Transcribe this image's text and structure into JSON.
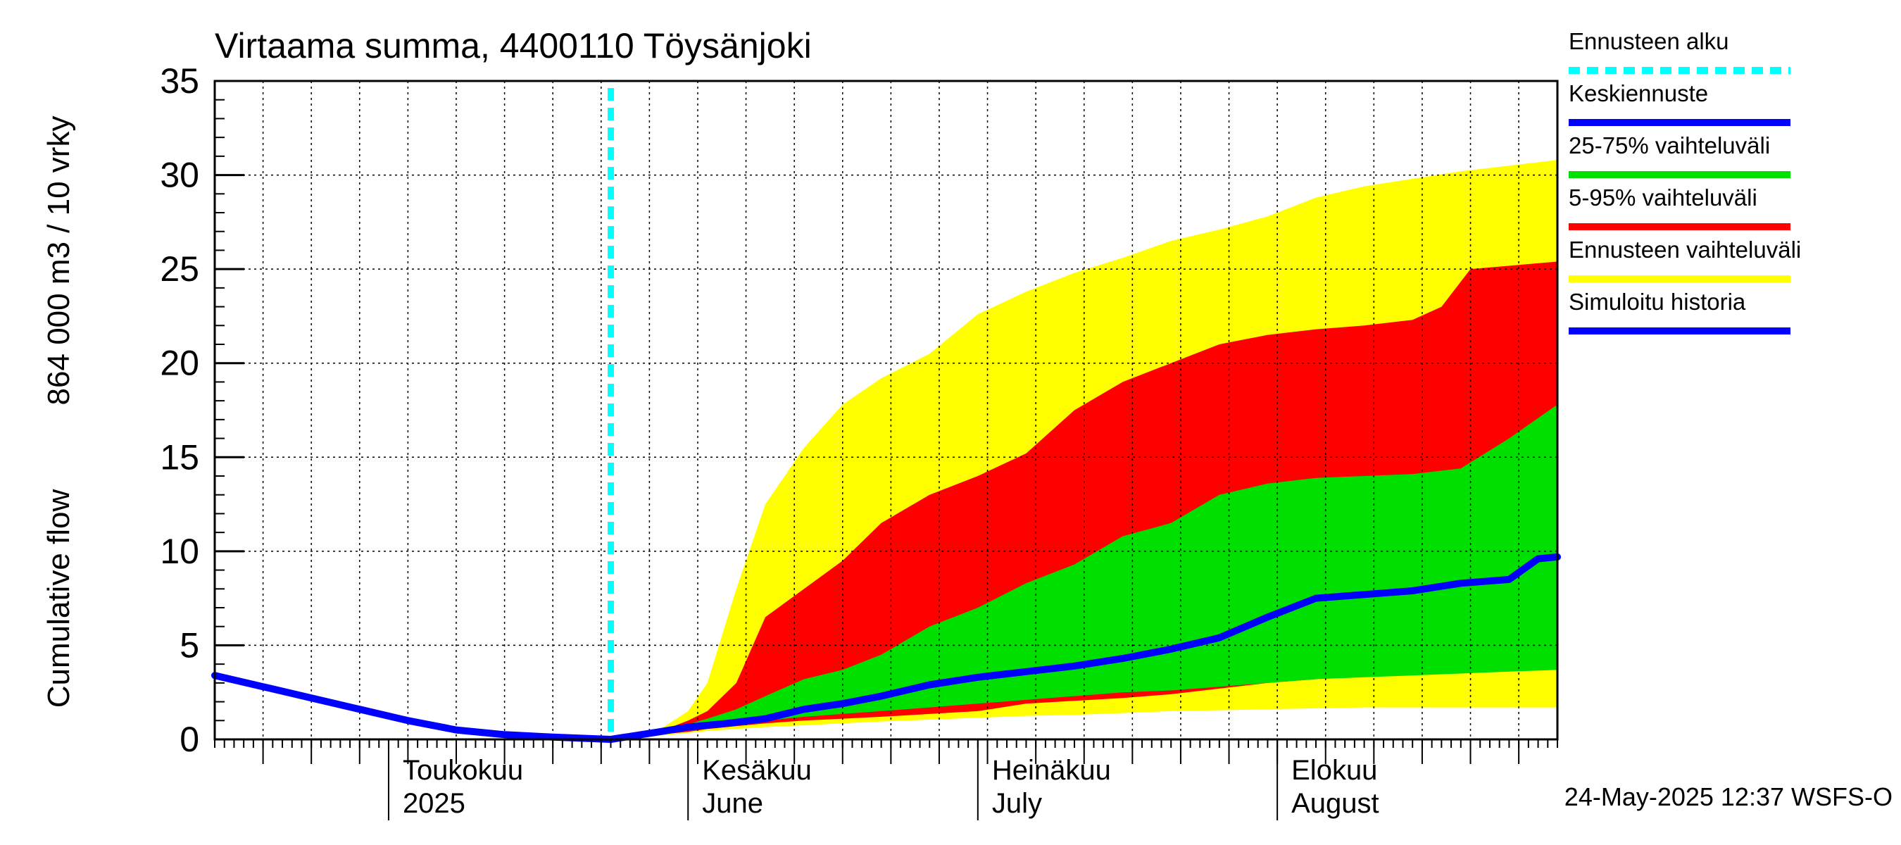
{
  "chart_data": {
    "type": "area",
    "title": "Virtaama summa, 4400110 Töysänjoki",
    "ylabel_left": "Cumulative flow",
    "ylabel_right": "864 000 m3 / 10 vrky",
    "ylim": [
      0,
      35
    ],
    "yticks": [
      0,
      5,
      10,
      15,
      20,
      25,
      30,
      35
    ],
    "xlim": [
      "2025-04-13",
      "2025-08-30"
    ],
    "grid": true,
    "legend_position": "right",
    "forecast_start": "2025-05-24",
    "month_labels": [
      {
        "date": "2025-05-01",
        "line1": "Toukokuu",
        "line2": "2025"
      },
      {
        "date": "2025-06-01",
        "line1": "Kesäkuu",
        "line2": "June"
      },
      {
        "date": "2025-07-01",
        "line1": "Heinäkuu",
        "line2": "July"
      },
      {
        "date": "2025-08-01",
        "line1": "Elokuu",
        "line2": "August"
      }
    ],
    "legend": [
      {
        "label": "Ennusteen alku",
        "color": "#00ffff",
        "style": "dashed"
      },
      {
        "label": "Keskiennuste",
        "color": "#0000ff",
        "style": "solid"
      },
      {
        "label": "25-75% vaihteluväli",
        "color": "#00e000",
        "style": "solid"
      },
      {
        "label": "5-95% vaihteluväli",
        "color": "#ff0000",
        "style": "solid"
      },
      {
        "label": "Ennusteen vaihteluväli",
        "color": "#ffff00",
        "style": "solid"
      },
      {
        "label": "Simuloitu historia",
        "color": "#0000ff",
        "style": "solid"
      }
    ],
    "series": [
      {
        "name": "Simuloitu historia",
        "color": "#0000ff",
        "x": [
          "2025-04-13",
          "2025-04-18",
          "2025-04-23",
          "2025-04-28",
          "2025-05-03",
          "2025-05-08",
          "2025-05-13",
          "2025-05-18",
          "2025-05-24"
        ],
        "y": [
          3.4,
          2.8,
          2.2,
          1.6,
          1.0,
          0.5,
          0.25,
          0.12,
          0.0
        ]
      },
      {
        "name": "Ennusteen vaihteluväli",
        "color": "#ffff00",
        "x": [
          "2025-05-24",
          "2025-05-29",
          "2025-06-01",
          "2025-06-03",
          "2025-06-06",
          "2025-06-09",
          "2025-06-13",
          "2025-06-17",
          "2025-06-21",
          "2025-06-26",
          "2025-07-01",
          "2025-07-06",
          "2025-07-11",
          "2025-07-16",
          "2025-07-21",
          "2025-07-26",
          "2025-07-31",
          "2025-08-05",
          "2025-08-10",
          "2025-08-15",
          "2025-08-20",
          "2025-08-25",
          "2025-08-30"
        ],
        "upper": [
          0.0,
          0.5,
          1.5,
          3.0,
          8.0,
          12.5,
          15.5,
          17.8,
          19.2,
          20.5,
          22.6,
          23.8,
          24.8,
          25.6,
          26.5,
          27.1,
          27.8,
          28.8,
          29.4,
          29.8,
          30.2,
          30.5,
          30.8
        ],
        "lower": [
          0.0,
          0.2,
          0.35,
          0.45,
          0.55,
          0.65,
          0.75,
          0.85,
          0.95,
          1.05,
          1.15,
          1.25,
          1.3,
          1.4,
          1.5,
          1.55,
          1.6,
          1.65,
          1.7,
          1.7,
          1.7,
          1.7,
          1.7
        ]
      },
      {
        "name": "5-95% vaihteluväli",
        "color": "#ff0000",
        "x": [
          "2025-05-24",
          "2025-05-29",
          "2025-06-01",
          "2025-06-03",
          "2025-06-06",
          "2025-06-09",
          "2025-06-13",
          "2025-06-17",
          "2025-06-21",
          "2025-06-26",
          "2025-07-01",
          "2025-07-06",
          "2025-07-11",
          "2025-07-16",
          "2025-07-21",
          "2025-07-26",
          "2025-07-31",
          "2025-08-05",
          "2025-08-10",
          "2025-08-15",
          "2025-08-18",
          "2025-08-21",
          "2025-08-30"
        ],
        "upper": [
          0.0,
          0.4,
          1.0,
          1.5,
          3.0,
          6.5,
          8.0,
          9.5,
          11.5,
          13.0,
          14.0,
          15.2,
          17.5,
          19.0,
          20.0,
          21.0,
          21.5,
          21.8,
          22.0,
          22.3,
          23.0,
          25.0,
          25.4
        ],
        "lower": [
          0.0,
          0.25,
          0.4,
          0.55,
          0.7,
          0.85,
          1.0,
          1.1,
          1.2,
          1.35,
          1.5,
          1.9,
          2.05,
          2.2,
          2.4,
          2.7,
          3.0,
          3.2,
          3.5,
          3.6,
          3.7,
          3.75,
          3.8
        ]
      },
      {
        "name": "25-75% vaihteluväli",
        "color": "#00e000",
        "x": [
          "2025-05-24",
          "2025-05-29",
          "2025-06-01",
          "2025-06-03",
          "2025-06-06",
          "2025-06-09",
          "2025-06-13",
          "2025-06-17",
          "2025-06-21",
          "2025-06-26",
          "2025-07-01",
          "2025-07-06",
          "2025-07-11",
          "2025-07-16",
          "2025-07-21",
          "2025-07-26",
          "2025-07-31",
          "2025-08-05",
          "2025-08-10",
          "2025-08-15",
          "2025-08-20",
          "2025-08-25",
          "2025-08-30"
        ],
        "upper": [
          0.0,
          0.45,
          0.8,
          1.1,
          1.6,
          2.3,
          3.2,
          3.7,
          4.5,
          6.0,
          7.0,
          8.3,
          9.3,
          10.8,
          11.5,
          13.0,
          13.6,
          13.9,
          14.0,
          14.1,
          14.4,
          16.0,
          17.8
        ],
        "lower": [
          0.0,
          0.3,
          0.5,
          0.65,
          0.8,
          1.0,
          1.2,
          1.35,
          1.5,
          1.7,
          1.9,
          2.1,
          2.3,
          2.5,
          2.6,
          2.8,
          3.0,
          3.2,
          3.3,
          3.4,
          3.5,
          3.6,
          3.7
        ]
      },
      {
        "name": "Keskiennuste",
        "color": "#0000ff",
        "x": [
          "2025-05-24",
          "2025-05-29",
          "2025-06-01",
          "2025-06-05",
          "2025-06-09",
          "2025-06-13",
          "2025-06-17",
          "2025-06-21",
          "2025-06-26",
          "2025-07-01",
          "2025-07-06",
          "2025-07-11",
          "2025-07-16",
          "2025-07-21",
          "2025-07-26",
          "2025-07-31",
          "2025-08-05",
          "2025-08-10",
          "2025-08-15",
          "2025-08-20",
          "2025-08-25",
          "2025-08-28",
          "2025-08-30"
        ],
        "y": [
          0.0,
          0.4,
          0.65,
          0.85,
          1.1,
          1.6,
          1.9,
          2.3,
          2.9,
          3.3,
          3.6,
          3.9,
          4.3,
          4.8,
          5.4,
          6.5,
          7.5,
          7.7,
          7.9,
          8.3,
          8.5,
          9.6,
          9.7
        ]
      }
    ]
  },
  "footer": {
    "timestamp": "24-May-2025 12:37 WSFS-O"
  }
}
